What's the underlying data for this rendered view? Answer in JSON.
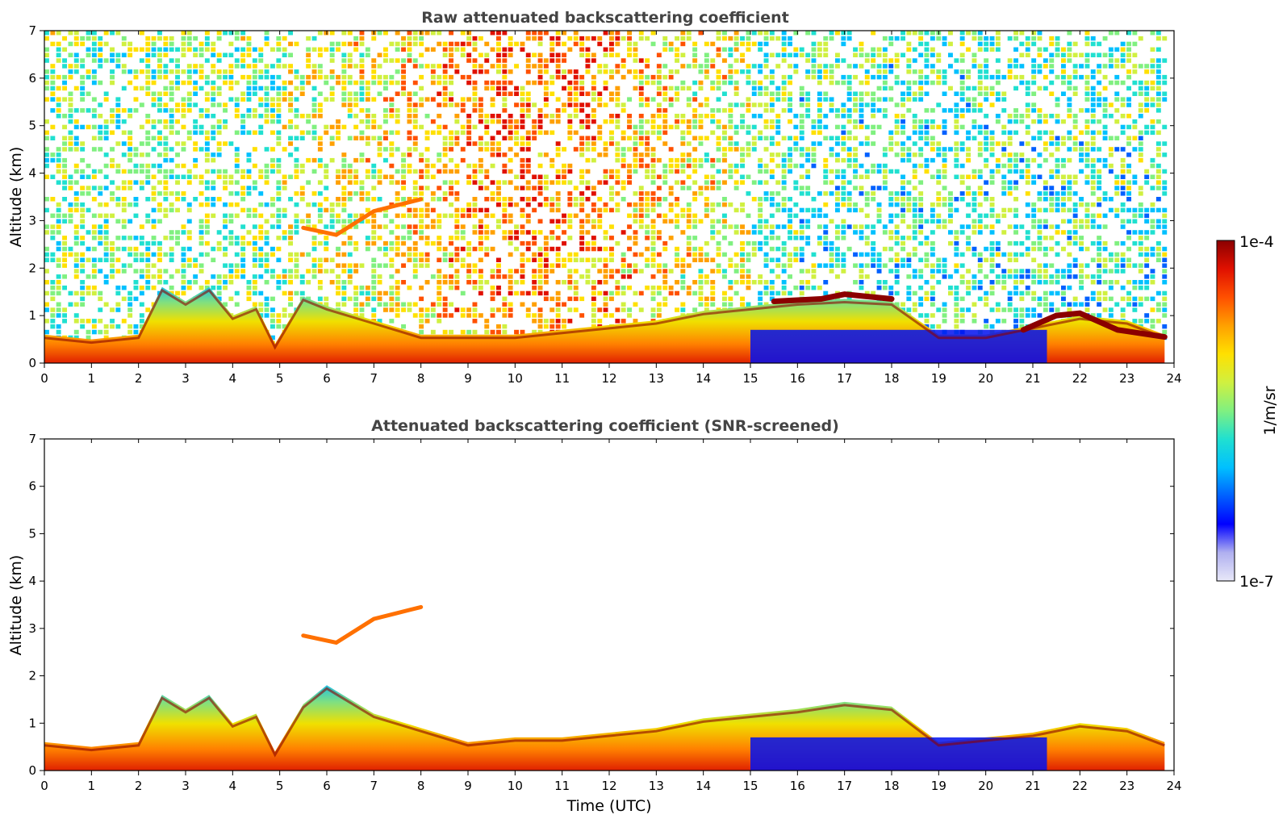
{
  "colorbar": {
    "max_label": "1e-4",
    "min_label": "1e-7",
    "unit_label": "1/m/sr",
    "scale": "log",
    "colormap": [
      "#e8e8f8",
      "#b0b0f0",
      "#0000ff",
      "#0060ff",
      "#00c0ff",
      "#20e0d0",
      "#80f080",
      "#d0f040",
      "#ffe000",
      "#ffa000",
      "#ff5000",
      "#e01000",
      "#8b0000"
    ]
  },
  "chart_data": [
    {
      "type": "heatmap",
      "title": "Raw attenuated backscattering coefficient",
      "xlabel": "",
      "ylabel": "Altitude (km)",
      "xlim": [
        0,
        24
      ],
      "ylim": [
        0,
        7
      ],
      "x_ticks": [
        "0",
        "1",
        "2",
        "3",
        "4",
        "5",
        "6",
        "7",
        "8",
        "9",
        "10",
        "11",
        "12",
        "13",
        "14",
        "15",
        "16",
        "17",
        "18",
        "19",
        "20",
        "21",
        "22",
        "23",
        "24"
      ],
      "y_ticks": [
        "0",
        "1",
        "2",
        "3",
        "4",
        "5",
        "6",
        "7"
      ],
      "noise_background": true,
      "layers": [
        {
          "feature": "boundary_layer",
          "x": [
            0,
            1,
            2,
            2.5,
            3,
            3.5,
            4,
            4.5,
            4.9,
            5.5,
            6,
            7,
            8,
            9,
            10,
            11,
            12,
            13,
            14,
            15,
            16,
            17,
            18,
            19,
            20,
            21,
            22,
            23,
            23.8
          ],
          "top_km": [
            0.6,
            0.5,
            0.6,
            1.6,
            1.3,
            1.6,
            1.0,
            1.2,
            0.4,
            1.4,
            1.2,
            0.9,
            0.6,
            0.6,
            0.6,
            0.7,
            0.8,
            0.9,
            1.1,
            1.2,
            1.3,
            1.35,
            1.3,
            0.6,
            0.6,
            0.8,
            1.0,
            0.9,
            0.6
          ]
        },
        {
          "feature": "elevated_aerosol",
          "x": [
            5.5,
            6.2,
            7,
            8
          ],
          "top_km": [
            2.85,
            2.7,
            3.2,
            3.45
          ]
        },
        {
          "feature": "cloud_top",
          "x": [
            15.5,
            16.5,
            17,
            18
          ],
          "top_km": [
            1.3,
            1.35,
            1.45,
            1.35
          ]
        },
        {
          "feature": "cloud_top",
          "x": [
            20.8,
            21.5,
            22,
            22.8,
            23.8
          ],
          "top_km": [
            0.7,
            1.0,
            1.05,
            0.7,
            0.55
          ]
        }
      ]
    },
    {
      "type": "heatmap",
      "title": "Attenuated backscattering coefficient (SNR-screened)",
      "xlabel": "Time (UTC)",
      "ylabel": "Altitude (km)",
      "xlim": [
        0,
        24
      ],
      "ylim": [
        0,
        7
      ],
      "x_ticks": [
        "0",
        "1",
        "2",
        "3",
        "4",
        "5",
        "6",
        "7",
        "8",
        "9",
        "10",
        "11",
        "12",
        "13",
        "14",
        "15",
        "16",
        "17",
        "18",
        "19",
        "20",
        "21",
        "22",
        "23",
        "24"
      ],
      "y_ticks": [
        "0",
        "1",
        "2",
        "3",
        "4",
        "5",
        "6",
        "7"
      ],
      "noise_background": false,
      "layers": [
        {
          "feature": "boundary_layer",
          "x": [
            0,
            1,
            2,
            2.5,
            3,
            3.5,
            4,
            4.5,
            4.9,
            5.5,
            6,
            7,
            8,
            9,
            10,
            11,
            12,
            13,
            14,
            15,
            16,
            17,
            18,
            19,
            20,
            21,
            22,
            23,
            23.8
          ],
          "top_km": [
            0.6,
            0.5,
            0.6,
            1.6,
            1.3,
            1.6,
            1.0,
            1.2,
            0.4,
            1.4,
            1.8,
            1.2,
            0.9,
            0.6,
            0.7,
            0.7,
            0.8,
            0.9,
            1.1,
            1.2,
            1.3,
            1.45,
            1.35,
            0.6,
            0.7,
            0.8,
            1.0,
            0.9,
            0.6
          ]
        },
        {
          "feature": "elevated_aerosol",
          "x": [
            5.5,
            6.2,
            7,
            8
          ],
          "top_km": [
            2.85,
            2.7,
            3.2,
            3.45
          ]
        }
      ]
    }
  ]
}
